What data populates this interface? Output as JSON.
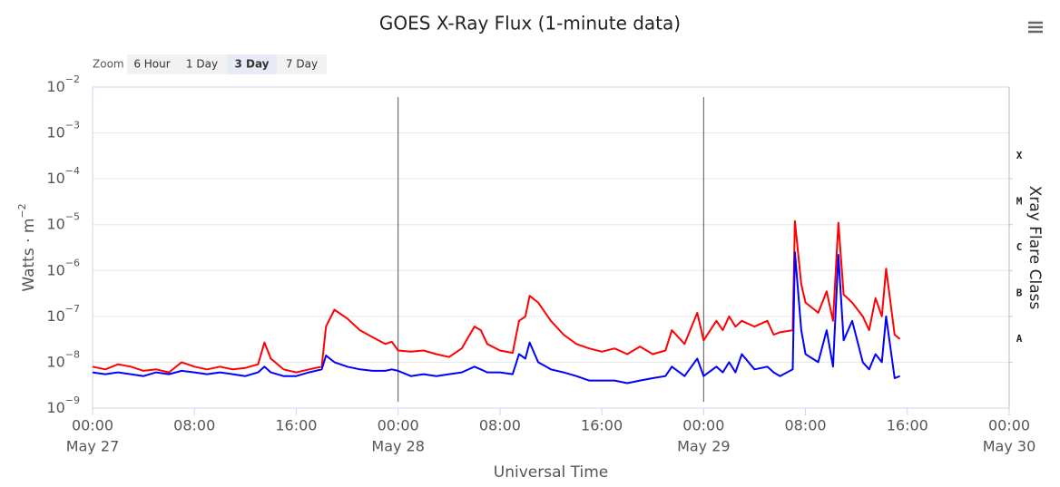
{
  "chart_data": {
    "type": "line",
    "title": "GOES X-Ray Flux (1-minute data)",
    "range_selector": {
      "label": "Zoom",
      "buttons": [
        "6 Hour",
        "1 Day",
        "3 Day",
        "7 Day"
      ],
      "selected": 2
    },
    "x_label": "Universal Time",
    "y_label": "Watts · m",
    "y_label_exponent": "−2",
    "y2_label": "Xray Flare Class",
    "log_y": true,
    "grid": true,
    "xlim": [
      "May 27 00:00",
      "May 30 00:00"
    ],
    "xticks": [
      {
        "value": "May 27 00:00",
        "label": "00:00",
        "date": "May 27"
      },
      {
        "value": "May 27 08:00",
        "label": "08:00"
      },
      {
        "value": "May 27 16:00",
        "label": "16:00"
      },
      {
        "value": "May 28 00:00",
        "label": "00:00",
        "date": "May 28"
      },
      {
        "value": "May 28 08:00",
        "label": "08:00"
      },
      {
        "value": "May 28 16:00",
        "label": "16:00"
      },
      {
        "value": "May 29 00:00",
        "label": "00:00",
        "date": "May 29"
      },
      {
        "value": "May 29 08:00",
        "label": "08:00"
      },
      {
        "value": "May 29 16:00",
        "label": "16:00"
      },
      {
        "value": "May 30 00:00",
        "label": "00:00",
        "date": "May 30"
      }
    ],
    "plot_lines": [
      "May 28 00:00",
      "May 29 00:00"
    ],
    "ylim": [
      1e-09,
      0.01
    ],
    "yticks": [
      {
        "value": 1e-09,
        "label": "10",
        "exponent": "−9"
      },
      {
        "value": 1e-08,
        "label": "10",
        "exponent": "−8"
      },
      {
        "value": 1e-07,
        "label": "10",
        "exponent": "−7"
      },
      {
        "value": 1e-06,
        "label": "10",
        "exponent": "−6"
      },
      {
        "value": 1e-05,
        "label": "10",
        "exponent": "−5"
      },
      {
        "value": 0.0001,
        "label": "10",
        "exponent": "−4"
      },
      {
        "value": 0.001,
        "label": "10",
        "exponent": "−3"
      },
      {
        "value": 0.01,
        "label": "10",
        "exponent": "−2"
      }
    ],
    "y2lim": [
      1e-09,
      0.01
    ],
    "y2ticks": [
      {
        "value": 1e-08,
        "label": "A"
      },
      {
        "value": 1e-07,
        "label": "B"
      },
      {
        "value": 1e-06,
        "label": "C"
      },
      {
        "value": 1e-05,
        "label": "M"
      },
      {
        "value": 0.0001,
        "label": "X"
      }
    ],
    "x": [
      "May 27 00:00",
      "May 27 01:00",
      "May 27 02:00",
      "May 27 03:00",
      "May 27 04:00",
      "May 27 05:00",
      "May 27 06:00",
      "May 27 07:00",
      "May 27 08:00",
      "May 27 09:00",
      "May 27 10:00",
      "May 27 11:00",
      "May 27 12:00",
      "May 27 13:00",
      "May 27 13:30",
      "May 27 14:00",
      "May 27 15:00",
      "May 27 16:00",
      "May 27 17:00",
      "May 27 18:00",
      "May 27 18:20",
      "May 27 19:00",
      "May 27 20:00",
      "May 27 21:00",
      "May 27 22:00",
      "May 27 23:00",
      "May 27 23:30",
      "May 28 00:00",
      "May 28 01:00",
      "May 28 02:00",
      "May 28 03:00",
      "May 28 04:00",
      "May 28 05:00",
      "May 28 06:00",
      "May 28 06:30",
      "May 28 07:00",
      "May 28 08:00",
      "May 28 09:00",
      "May 28 09:30",
      "May 28 10:00",
      "May 28 10:20",
      "May 28 11:00",
      "May 28 12:00",
      "May 28 13:00",
      "May 28 14:00",
      "May 28 15:00",
      "May 28 16:00",
      "May 28 17:00",
      "May 28 18:00",
      "May 28 19:00",
      "May 28 20:00",
      "May 28 21:00",
      "May 28 21:30",
      "May 28 22:30",
      "May 28 23:30",
      "May 29 00:00",
      "May 29 01:00",
      "May 29 01:30",
      "May 29 02:00",
      "May 29 02:30",
      "May 29 03:00",
      "May 29 04:00",
      "May 29 05:00",
      "May 29 05:30",
      "May 29 06:00",
      "May 29 07:00",
      "May 29 07:10",
      "May 29 07:40",
      "May 29 08:00",
      "May 29 09:00",
      "May 29 09:40",
      "May 29 10:10",
      "May 29 10:35",
      "May 29 11:00",
      "May 29 11:40",
      "May 29 12:30",
      "May 29 13:00",
      "May 29 13:30",
      "May 29 14:00",
      "May 29 14:20",
      "May 29 15:00",
      "May 29 15:25"
    ],
    "series": [
      {
        "color": "#ff0000",
        "values": [
          8e-09,
          7e-09,
          9e-09,
          8e-09,
          6.5e-09,
          7e-09,
          6e-09,
          1e-08,
          8e-09,
          7e-09,
          8e-09,
          7e-09,
          7.5e-09,
          9e-09,
          2.7e-08,
          1.2e-08,
          7e-09,
          6e-09,
          7e-09,
          8e-09,
          6e-08,
          1.4e-07,
          9e-08,
          5e-08,
          3.5e-08,
          2.5e-08,
          2.8e-08,
          1.8e-08,
          1.7e-08,
          1.8e-08,
          1.5e-08,
          1.3e-08,
          2e-08,
          6e-08,
          5e-08,
          2.5e-08,
          1.8e-08,
          1.6e-08,
          8e-08,
          1e-07,
          2.8e-07,
          2e-07,
          8e-08,
          4e-08,
          2.5e-08,
          2e-08,
          1.7e-08,
          2e-08,
          1.5e-08,
          2.2e-08,
          1.5e-08,
          1.8e-08,
          5e-08,
          2.5e-08,
          1.2e-07,
          3e-08,
          8e-08,
          5e-08,
          1e-07,
          6e-08,
          8e-08,
          6e-08,
          8e-08,
          4e-08,
          4.5e-08,
          5e-08,
          1.2e-05,
          5e-07,
          2e-07,
          1.2e-07,
          3.5e-07,
          8e-08,
          1.1e-05,
          3e-07,
          2e-07,
          1e-07,
          5e-08,
          2.5e-07,
          1e-07,
          1.1e-06,
          4e-08,
          3.2e-08
        ]
      },
      {
        "color": "#0000ff",
        "values": [
          6e-09,
          5.5e-09,
          6e-09,
          5.5e-09,
          5e-09,
          6e-09,
          5.5e-09,
          6.5e-09,
          6e-09,
          5.5e-09,
          6e-09,
          5.5e-09,
          5e-09,
          6e-09,
          8e-09,
          6e-09,
          5e-09,
          5e-09,
          6e-09,
          7e-09,
          1.4e-08,
          1e-08,
          8e-09,
          7e-09,
          6.5e-09,
          6.5e-09,
          7e-09,
          6.5e-09,
          5e-09,
          5.5e-09,
          5e-09,
          5.5e-09,
          6e-09,
          8e-09,
          7e-09,
          6e-09,
          6e-09,
          5.5e-09,
          1.5e-08,
          1.2e-08,
          2.7e-08,
          1e-08,
          7e-09,
          6e-09,
          5e-09,
          4e-09,
          4e-09,
          4e-09,
          3.5e-09,
          4e-09,
          4.5e-09,
          5e-09,
          8e-09,
          5e-09,
          1.2e-08,
          5e-09,
          8e-09,
          6e-09,
          1e-08,
          6e-09,
          1.5e-08,
          7e-09,
          8e-09,
          6e-09,
          5e-09,
          7e-09,
          2.5e-06,
          5e-08,
          1.5e-08,
          1e-08,
          5e-08,
          8e-09,
          2.2e-06,
          3e-08,
          8e-08,
          1e-08,
          7e-09,
          1.5e-08,
          1e-08,
          1e-07,
          4.5e-09,
          5e-09
        ]
      }
    ]
  }
}
